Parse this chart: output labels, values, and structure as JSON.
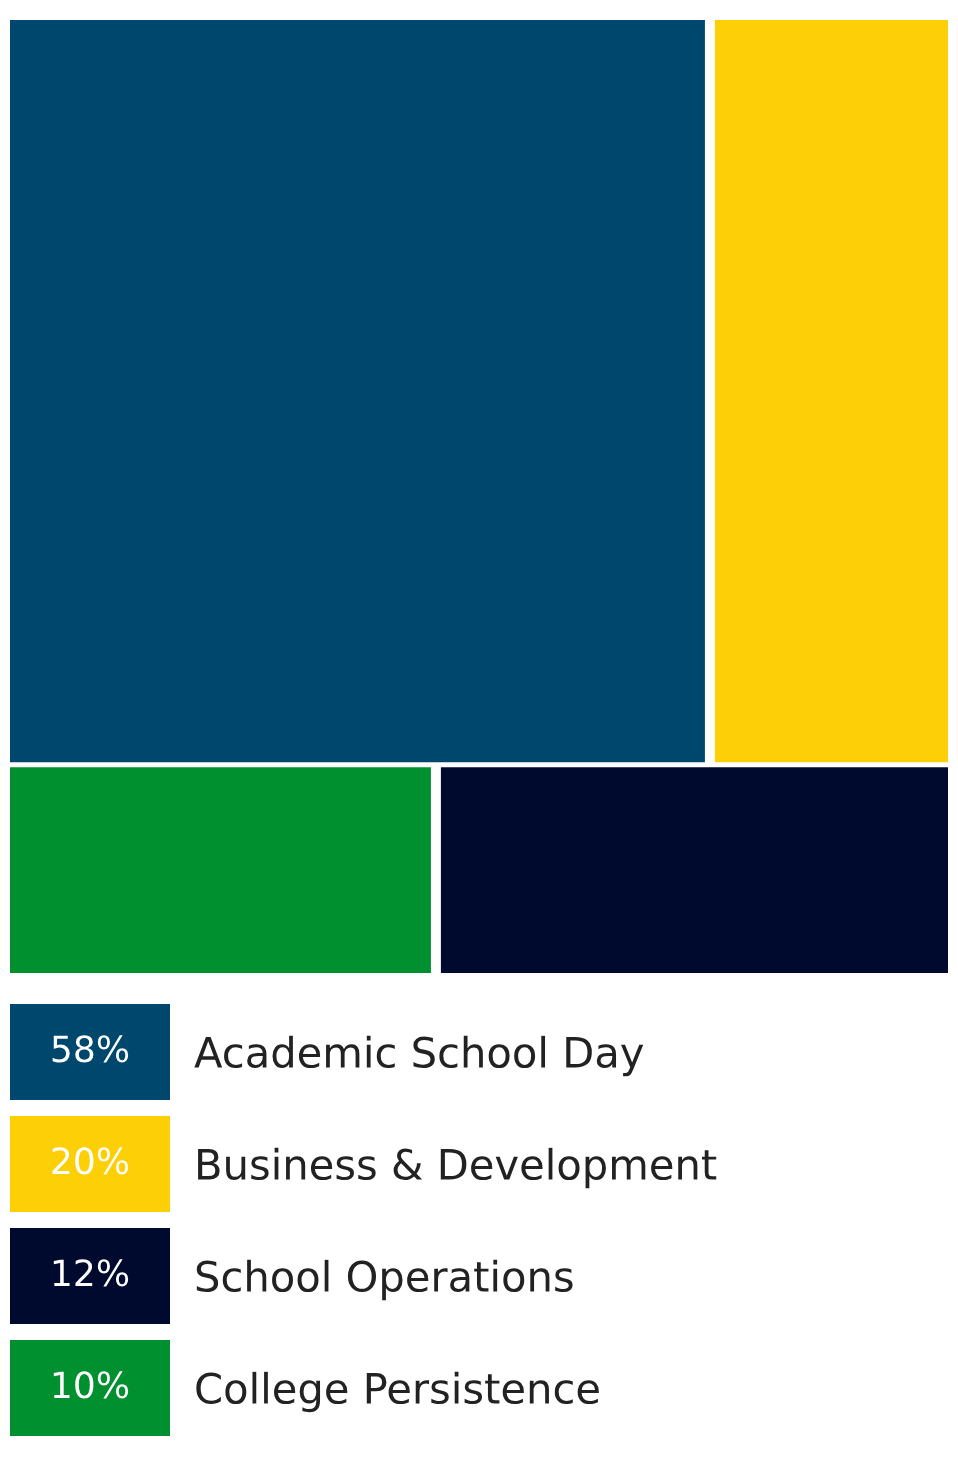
{
  "chart_data": {
    "type": "other",
    "categories": [
      "Academic School Day",
      "Business & Development",
      "School Operations",
      "College Persistence"
    ],
    "values": [
      58,
      20,
      12,
      10
    ],
    "value_labels": [
      "58%",
      "20%",
      "12%",
      "10%"
    ],
    "colors": [
      "#00476e",
      "#fccf07",
      "#000a2e",
      "#00902f"
    ]
  }
}
